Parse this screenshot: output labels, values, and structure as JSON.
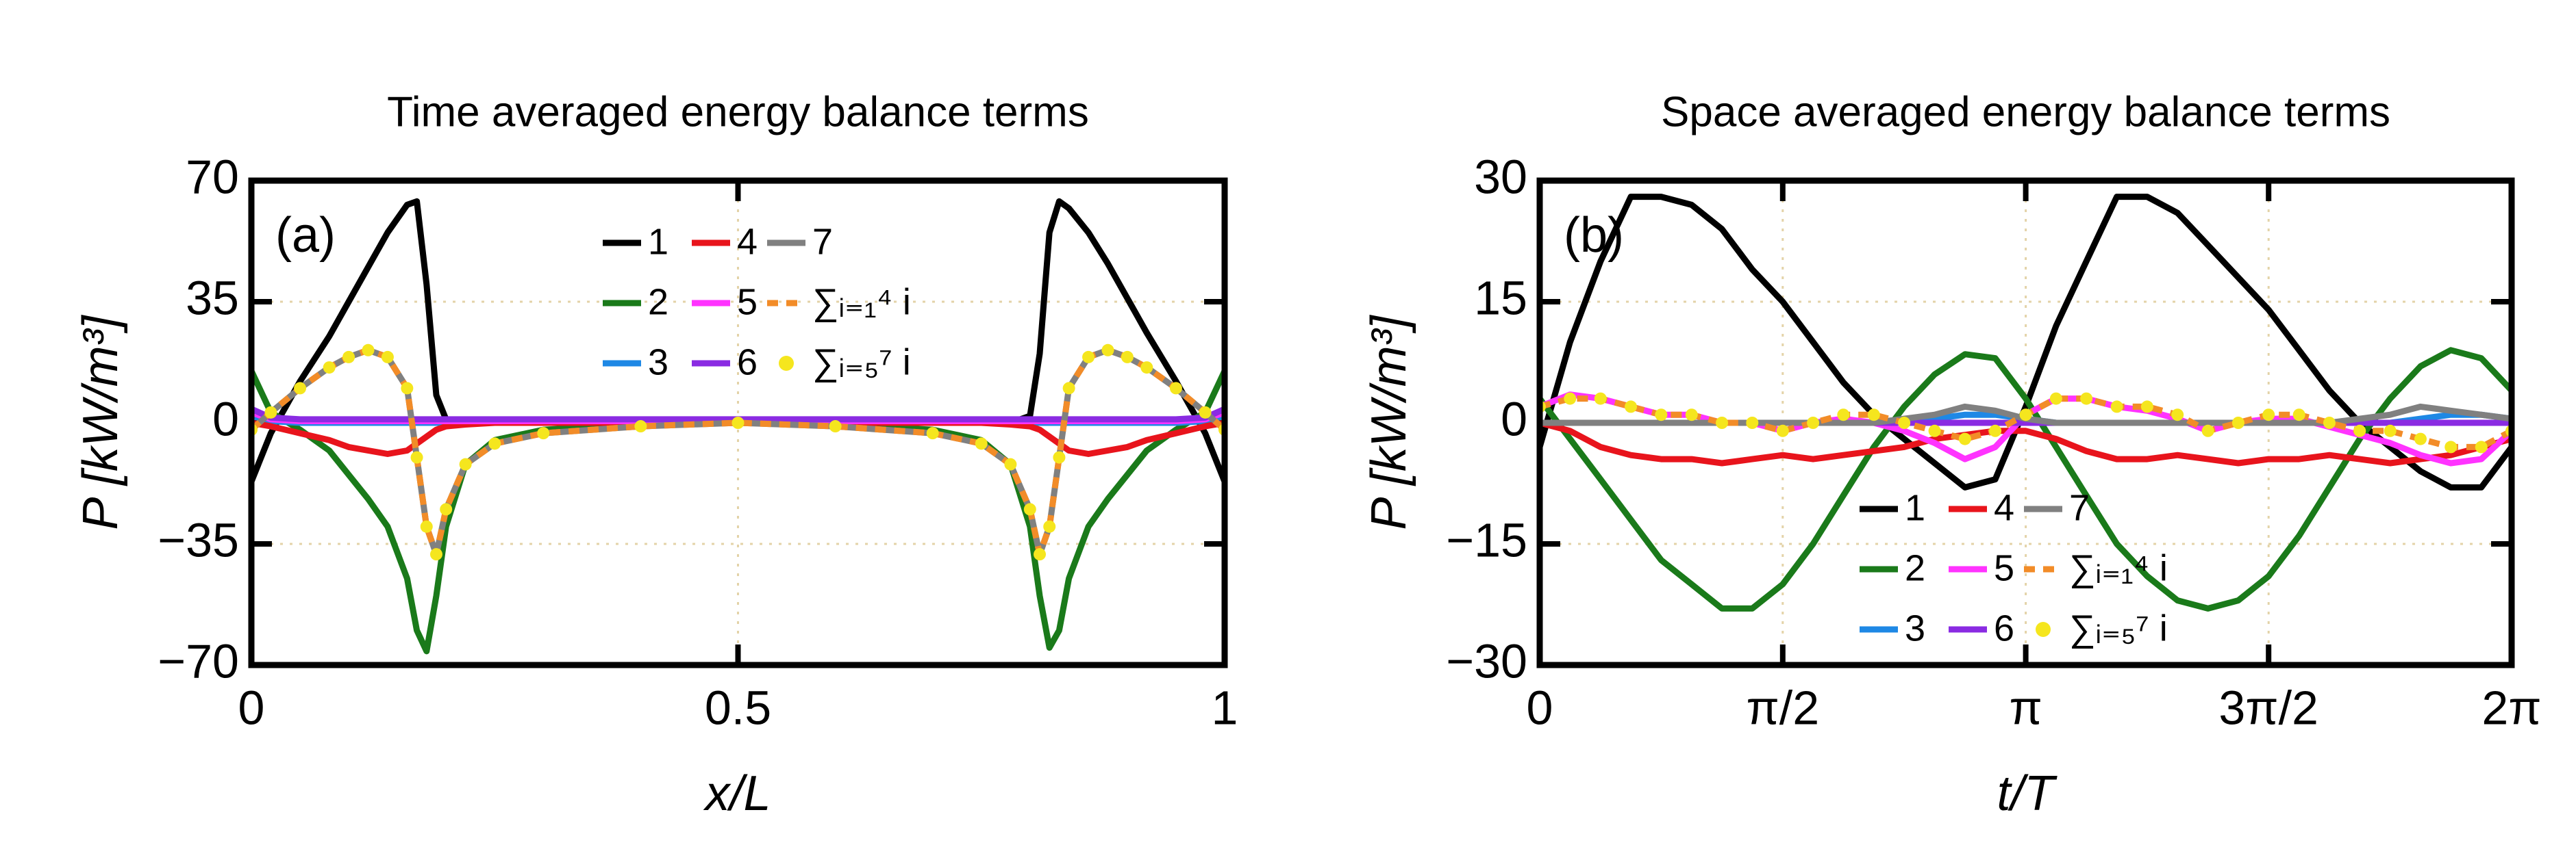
{
  "chart_data": [
    {
      "type": "line",
      "title": "Time averaged energy balance terms",
      "xlabel": "x/L",
      "ylabel": "P [kW/m³]",
      "annotation": "(a)",
      "xlim": [
        0,
        1
      ],
      "ylim": [
        -70,
        70
      ],
      "xticks": [
        0,
        0.5,
        1
      ],
      "yticks": [
        {
          "value": -70,
          "label": "−70"
        },
        {
          "value": -35,
          "label": "−35"
        },
        0,
        35,
        70
      ],
      "grid": true,
      "x": [
        0,
        0.02,
        0.05,
        0.08,
        0.1,
        0.12,
        0.14,
        0.16,
        0.17,
        0.18,
        0.19,
        0.2,
        0.22,
        0.25,
        0.3,
        0.4,
        0.5,
        0.6,
        0.7,
        0.75,
        0.78,
        0.8,
        0.81,
        0.82,
        0.83,
        0.84,
        0.86,
        0.88,
        0.9,
        0.92,
        0.95,
        0.98,
        1
      ],
      "series": [
        {
          "name": "1",
          "color": "#000000",
          "values": [
            -17,
            -3,
            12,
            25,
            35,
            45,
            55,
            63,
            64,
            40,
            8,
            1,
            0,
            0,
            0,
            0,
            0,
            0,
            0,
            0,
            0,
            2,
            20,
            55,
            64,
            62,
            55,
            46,
            36,
            26,
            12,
            -3,
            -17
          ]
        },
        {
          "name": "2",
          "color": "#1a7a1a",
          "values": [
            15,
            3,
            -2,
            -8,
            -15,
            -22,
            -30,
            -45,
            -60,
            -66,
            -50,
            -30,
            -12,
            -5,
            -2,
            -0.5,
            0,
            -0.5,
            -2,
            -5,
            -12,
            -30,
            -50,
            -65,
            -60,
            -45,
            -30,
            -22,
            -15,
            -8,
            -2,
            3,
            15
          ]
        },
        {
          "name": "3",
          "color": "#1e88e5",
          "values": [
            2,
            0.5,
            0,
            0,
            0,
            0,
            0,
            0,
            0,
            0,
            0,
            0,
            0,
            0,
            0,
            0,
            0,
            0,
            0,
            0,
            0,
            0,
            0,
            0,
            0,
            0,
            0,
            0,
            0,
            0,
            0,
            0.5,
            2
          ]
        },
        {
          "name": "4",
          "color": "#e8141c",
          "values": [
            0,
            -1,
            -3,
            -5,
            -7,
            -8,
            -9,
            -8,
            -6,
            -4,
            -2,
            -1,
            -0.5,
            0,
            0,
            0,
            0,
            0,
            0,
            0,
            -0.5,
            -1,
            -2,
            -4,
            -6,
            -8,
            -9,
            -8,
            -7,
            -5,
            -3,
            -1,
            0
          ]
        },
        {
          "name": "5",
          "color": "#ff33ff",
          "values": [
            3,
            1,
            0.5,
            0.5,
            0.5,
            0.5,
            0.5,
            0.5,
            0.5,
            0.5,
            0.5,
            0.5,
            0.5,
            0.5,
            0.5,
            0.5,
            0.5,
            0.5,
            0.5,
            0.5,
            0.5,
            0.5,
            0.5,
            0.5,
            0.5,
            0.5,
            0.5,
            0.5,
            0.5,
            0.5,
            0.5,
            1,
            3
          ]
        },
        {
          "name": "6",
          "color": "#8a2be2",
          "values": [
            4,
            1.5,
            1,
            1,
            1,
            1,
            1,
            1,
            1,
            1,
            1,
            1,
            1,
            1,
            1,
            1,
            1,
            1,
            1,
            1,
            1,
            1,
            1,
            1,
            1,
            1,
            1,
            1,
            1,
            1,
            1,
            1.5,
            4
          ]
        },
        {
          "name": "7",
          "color": "#808080",
          "values": [
            -2,
            3,
            10,
            16,
            19,
            21,
            19,
            10,
            -10,
            -30,
            -38,
            -25,
            -12,
            -6,
            -3,
            -1,
            0,
            -1,
            -3,
            -6,
            -12,
            -25,
            -38,
            -30,
            -10,
            10,
            19,
            21,
            19,
            16,
            10,
            3,
            -2
          ]
        },
        {
          "name": "∑ᵢ₌₁⁴ i",
          "color": "#f28c28",
          "dashed": true,
          "values": [
            -2,
            3,
            10,
            16,
            19,
            21,
            19,
            10,
            -10,
            -30,
            -38,
            -25,
            -12,
            -6,
            -3,
            -1,
            0,
            -1,
            -3,
            -6,
            -12,
            -25,
            -38,
            -30,
            -10,
            10,
            19,
            21,
            19,
            16,
            10,
            3,
            -2
          ]
        },
        {
          "name": "∑ᵢ₌₅⁷ i",
          "color": "#f5e61e",
          "marker": "dots",
          "values": [
            -2,
            3,
            10,
            16,
            19,
            21,
            19,
            10,
            -10,
            -30,
            -38,
            -25,
            -12,
            -6,
            -3,
            -1,
            0,
            -1,
            -3,
            -6,
            -12,
            -25,
            -38,
            -30,
            -10,
            10,
            19,
            21,
            19,
            16,
            10,
            3,
            -2
          ]
        }
      ]
    },
    {
      "type": "line",
      "title": "Space averaged energy balance terms",
      "xlabel": "t/T",
      "ylabel": "P [kW/m³]",
      "annotation": "(b)",
      "xlim": [
        0,
        6.283
      ],
      "ylim": [
        -30,
        30
      ],
      "xticks": [
        0,
        {
          "value": 1.571,
          "label": "π/2"
        },
        {
          "value": 3.142,
          "label": "π"
        },
        {
          "value": 4.712,
          "label": "3π/2"
        },
        {
          "value": 6.283,
          "label": "2π"
        }
      ],
      "yticks": [
        {
          "value": -30,
          "label": "−30"
        },
        {
          "value": -15,
          "label": "−15"
        },
        0,
        15,
        30
      ],
      "grid": true,
      "x": [
        0,
        0.196,
        0.393,
        0.589,
        0.785,
        0.982,
        1.178,
        1.374,
        1.571,
        1.767,
        1.963,
        2.16,
        2.356,
        2.553,
        2.749,
        2.945,
        3.142,
        3.338,
        3.534,
        3.731,
        3.927,
        4.123,
        4.32,
        4.516,
        4.712,
        4.909,
        5.105,
        5.301,
        5.498,
        5.694,
        5.89,
        6.087,
        6.283
      ],
      "series": [
        {
          "name": "1",
          "color": "#000000",
          "values": [
            -3,
            10,
            20,
            28,
            28,
            27,
            24,
            19,
            15,
            10,
            5,
            1,
            -2,
            -5,
            -8,
            -7,
            2,
            12,
            20,
            28,
            28,
            26,
            22,
            18,
            14,
            9,
            4,
            0,
            -3,
            -6,
            -8,
            -8,
            -3
          ]
        },
        {
          "name": "2",
          "color": "#1a7a1a",
          "values": [
            3,
            -2,
            -7,
            -12,
            -17,
            -20,
            -23,
            -23,
            -20,
            -15,
            -9,
            -3,
            2,
            6,
            8.5,
            8,
            3,
            -3,
            -9,
            -15,
            -19,
            -22,
            -23,
            -22,
            -19,
            -14,
            -8,
            -2,
            3,
            7,
            9,
            8,
            4
          ]
        },
        {
          "name": "3",
          "color": "#1e88e5",
          "values": [
            0,
            0,
            0,
            0,
            0,
            0,
            0,
            0,
            0,
            0,
            0,
            0,
            0,
            0.5,
            1,
            1,
            0.5,
            0,
            0,
            0,
            0,
            0,
            0,
            0,
            0,
            0,
            0,
            0,
            0,
            0.5,
            1,
            1,
            0.5
          ]
        },
        {
          "name": "4",
          "color": "#e8141c",
          "values": [
            0,
            -1,
            -3,
            -4,
            -4.5,
            -4.5,
            -5,
            -4.5,
            -4,
            -4.5,
            -4,
            -3.5,
            -3,
            -2,
            -1.5,
            -1,
            -1,
            -2,
            -3.5,
            -4.5,
            -4.5,
            -4,
            -4.5,
            -5,
            -4.5,
            -4.5,
            -4,
            -4.5,
            -5,
            -4.5,
            -4,
            -3,
            -2
          ]
        },
        {
          "name": "5",
          "color": "#ff33ff",
          "values": [
            2,
            3.5,
            3,
            2,
            1,
            1,
            0,
            0,
            -1,
            0,
            0.5,
            0,
            -1,
            -2.5,
            -4.5,
            -3,
            1,
            3,
            3,
            2,
            1.5,
            0.5,
            -1,
            0,
            0.5,
            0.5,
            -0.5,
            -1.5,
            -2.5,
            -4,
            -5,
            -4.5,
            -1
          ]
        },
        {
          "name": "6",
          "color": "#8a2be2",
          "values": [
            0,
            0,
            0,
            0,
            0,
            0,
            0,
            0,
            0,
            0,
            0,
            0,
            0,
            0,
            0,
            0,
            0,
            0,
            0,
            0,
            0,
            0,
            0,
            0,
            0,
            0,
            0,
            0,
            0,
            0,
            0,
            0,
            0
          ]
        },
        {
          "name": "7",
          "color": "#808080",
          "values": [
            0,
            0,
            0,
            0,
            0,
            0,
            0,
            0,
            0,
            0,
            0,
            0,
            0.5,
            1,
            2,
            1.5,
            0.5,
            0,
            0,
            0,
            0,
            0,
            0,
            0,
            0,
            0,
            0,
            0.5,
            1,
            2,
            1.5,
            1,
            0.5
          ]
        },
        {
          "name": "∑ᵢ₌₁⁴ i",
          "color": "#f28c28",
          "dashed": true,
          "values": [
            2,
            3,
            3,
            2,
            1,
            1,
            0,
            0,
            -1,
            0,
            1,
            1,
            0,
            -1,
            -2,
            -1,
            1,
            3,
            3,
            2,
            2,
            1,
            -1,
            0,
            1,
            1,
            0,
            -1,
            -1,
            -2,
            -3,
            -3,
            -1
          ]
        },
        {
          "name": "∑ᵢ₌₅⁷ i",
          "color": "#f5e61e",
          "marker": "dots",
          "values": [
            2,
            3,
            3,
            2,
            1,
            1,
            0,
            0,
            -1,
            0,
            1,
            1,
            0,
            -1,
            -2,
            -1,
            1,
            3,
            3,
            2,
            2,
            1,
            -1,
            0,
            1,
            1,
            0,
            -1,
            -1,
            -2,
            -3,
            -3,
            -1
          ]
        }
      ]
    }
  ]
}
